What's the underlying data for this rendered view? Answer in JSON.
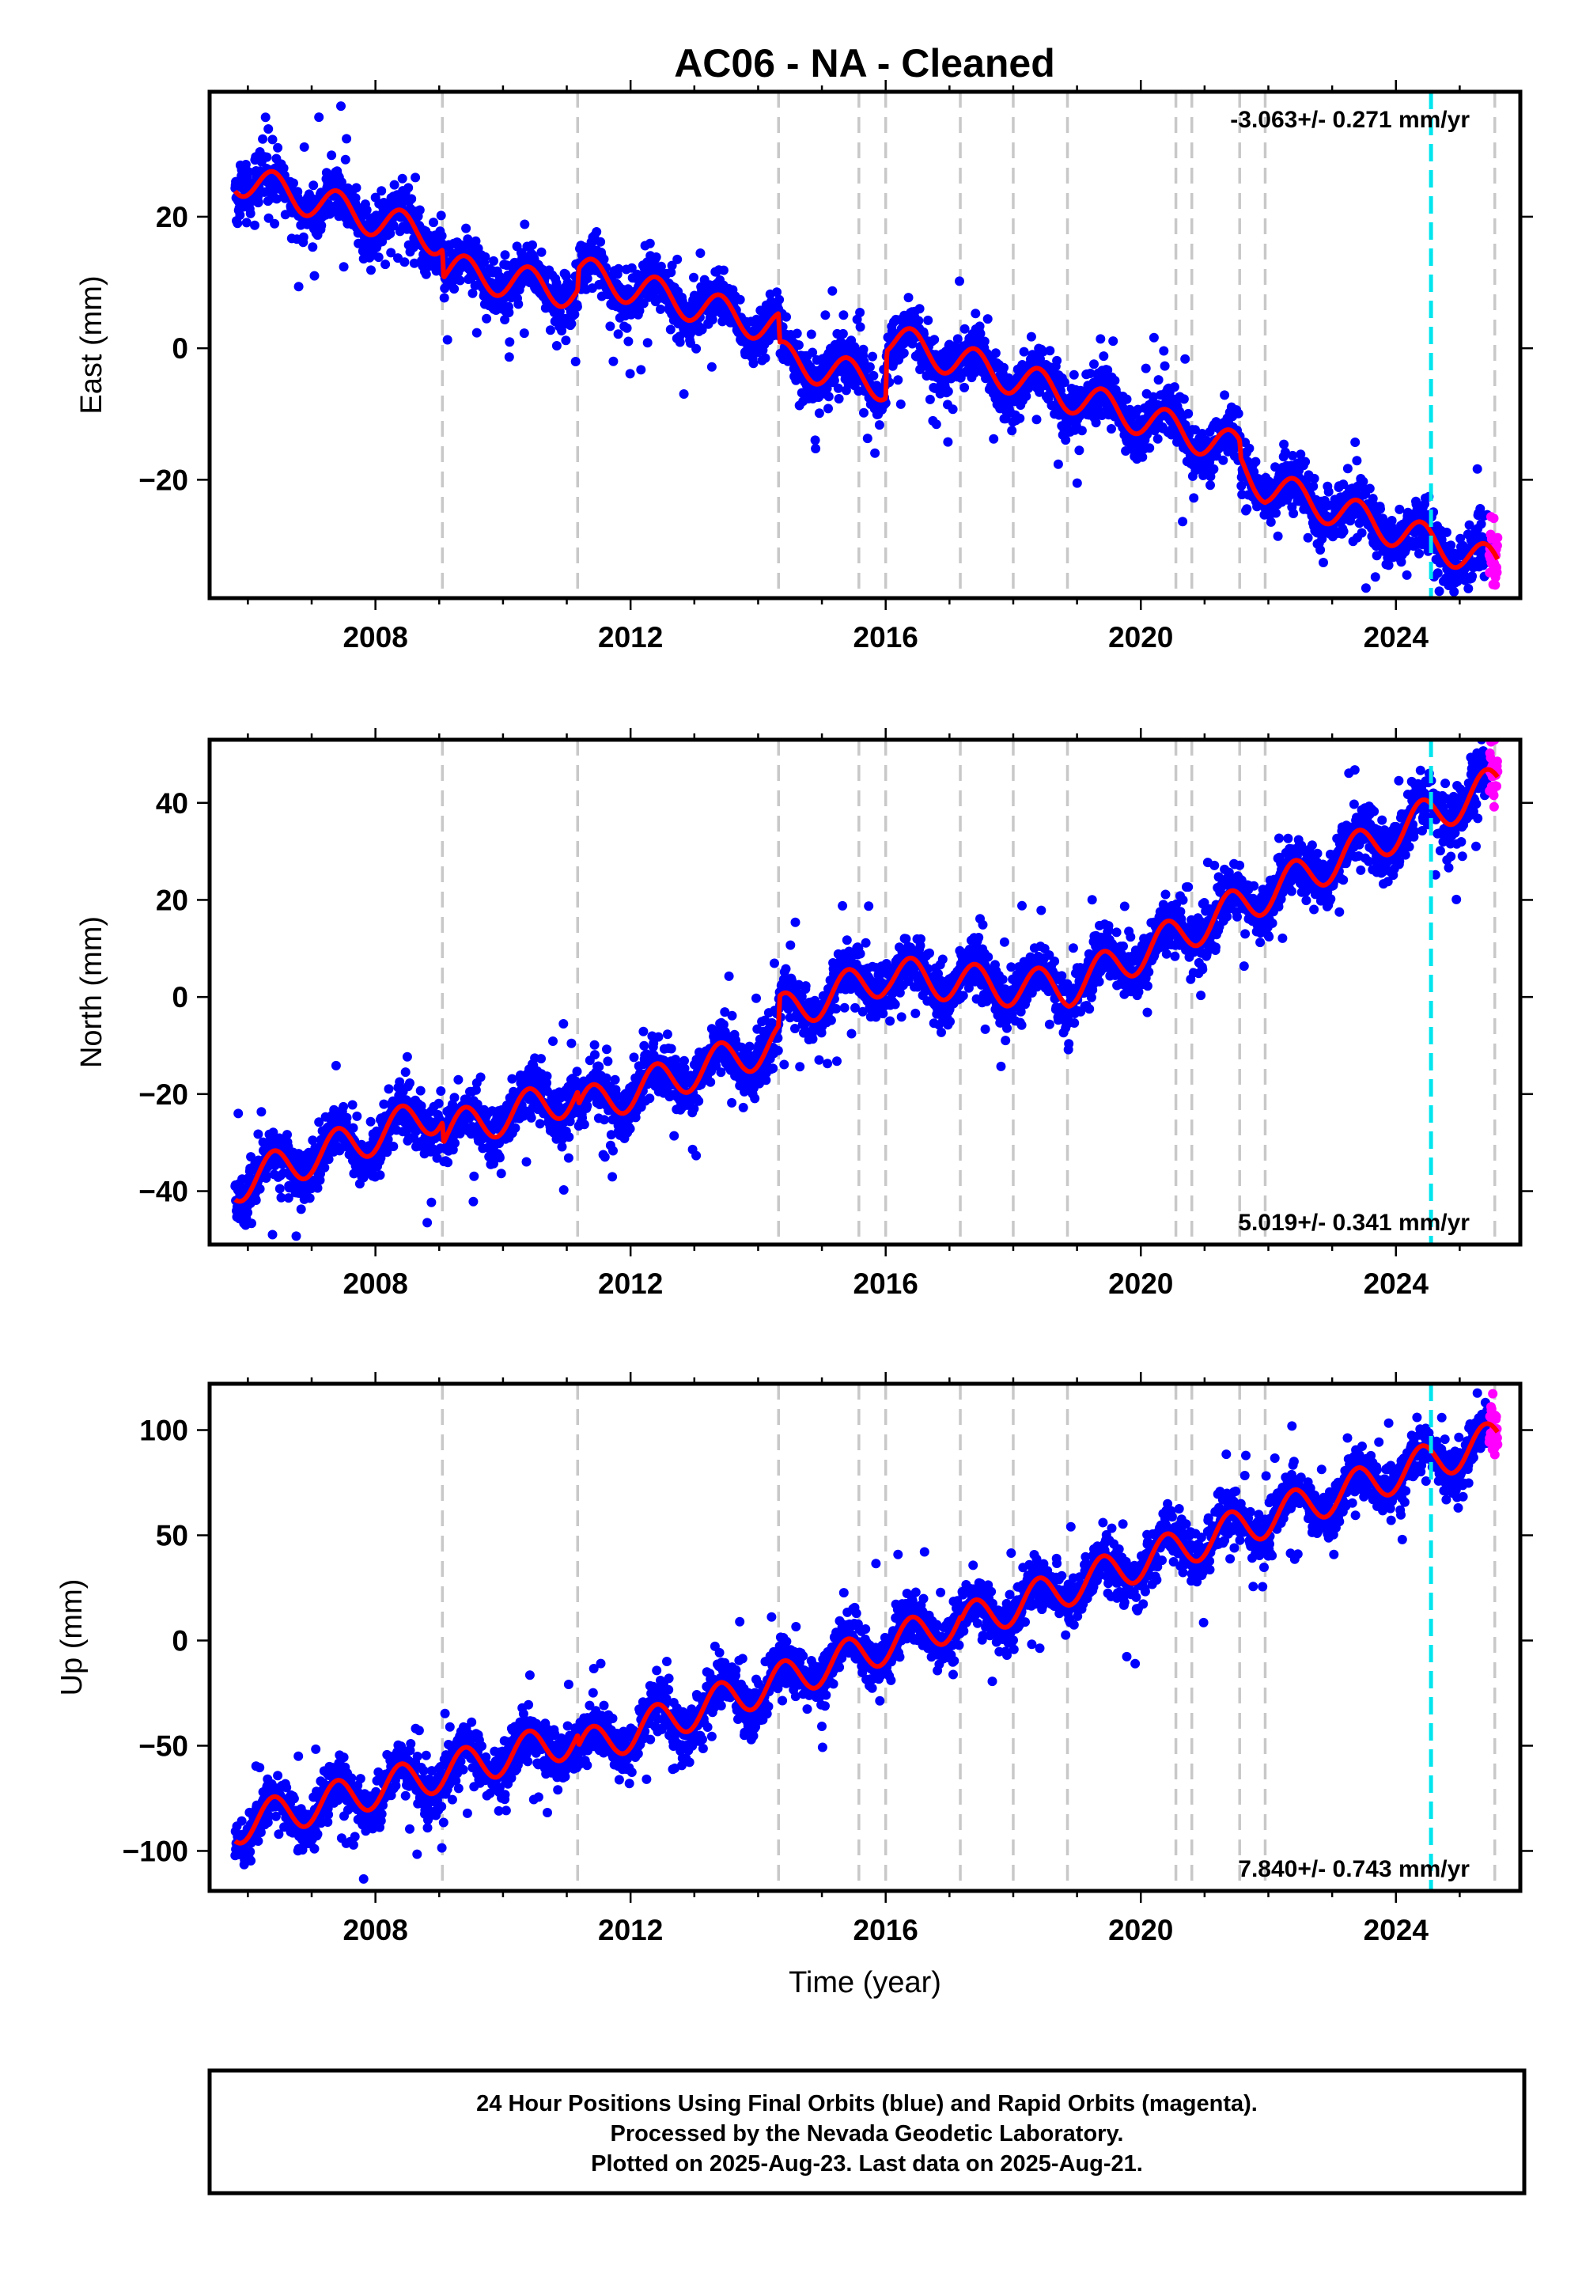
{
  "title": "AC06  - NA - Cleaned",
  "colors": {
    "final_orbits": "#0000ff",
    "rapid_orbits": "#ff00ff",
    "model_fit": "#ff0000",
    "equipment_change": "#c8c8c8",
    "highlight_event": "#00e5ee"
  },
  "footer": {
    "line1": "24 Hour Positions Using Final Orbits (blue) and Rapid Orbits (magenta).",
    "line2": "Processed by the Nevada Geodetic Laboratory.",
    "line3": "Plotted on 2025-Aug-23. Last data on 2025-Aug-21."
  },
  "chart_data": [
    {
      "type": "scatter",
      "ylabel": "East (mm)",
      "xlabel": "",
      "rate": "-3.063+/- 0.271 mm/yr",
      "rate_position": "top-right",
      "xlim": [
        2005.4,
        2025.95
      ],
      "ylim": [
        -38,
        39
      ],
      "xticks": [
        "2008",
        "2012",
        "2016",
        "2020",
        "2024"
      ],
      "yticks": [
        "20",
        "0",
        "−20"
      ],
      "ytick_values": [
        20,
        0,
        -20
      ],
      "grid": false,
      "dashed_lines": [
        2009.05,
        2011.17,
        2014.32,
        2015.58,
        2016.0,
        2017.17,
        2018.0,
        2018.85,
        2020.55,
        2020.8,
        2021.55,
        2021.95,
        2025.55
      ],
      "highlight_line": 2024.55,
      "fit_knots": [
        [
          2005.8,
          26.0
        ],
        [
          2009.05,
          16.5
        ],
        [
          2009.07,
          12.0
        ],
        [
          2011.17,
          8.5
        ],
        [
          2011.19,
          11.5
        ],
        [
          2014.32,
          3.0
        ],
        [
          2014.34,
          -1.5
        ],
        [
          2016.0,
          -5.5
        ],
        [
          2016.02,
          1.5
        ],
        [
          2018.0,
          -4.5
        ],
        [
          2018.02,
          -4.5
        ],
        [
          2021.55,
          -15.5
        ],
        [
          2021.57,
          -18.0
        ],
        [
          2021.95,
          -21.0
        ],
        [
          2021.97,
          -21.0
        ],
        [
          2025.6,
          -33.0
        ]
      ],
      "seasonal_amplitude": 2.6,
      "scatter_noise": 2.0
    },
    {
      "type": "scatter",
      "ylabel": "North (mm)",
      "xlabel": "",
      "rate": "5.019+/- 0.341 mm/yr",
      "rate_position": "bottom-right",
      "xlim": [
        2005.4,
        2025.95
      ],
      "ylim": [
        -51,
        53
      ],
      "xticks": [
        "2008",
        "2012",
        "2016",
        "2020",
        "2024"
      ],
      "yticks": [
        "40",
        "20",
        "0",
        "−20",
        "−40"
      ],
      "ytick_values": [
        40,
        20,
        0,
        -20,
        -40
      ],
      "grid": false,
      "dashed_lines": [
        2009.05,
        2011.17,
        2014.32,
        2015.58,
        2016.0,
        2017.17,
        2018.0,
        2018.85,
        2020.55,
        2020.8,
        2021.55,
        2021.95,
        2025.55
      ],
      "highlight_line": 2024.55,
      "fit_knots": [
        [
          2005.8,
          -38.5
        ],
        [
          2009.05,
          -23.5
        ],
        [
          2009.07,
          -28.0
        ],
        [
          2011.17,
          -20.0
        ],
        [
          2011.19,
          -23.0
        ],
        [
          2014.32,
          -9.5
        ],
        [
          2014.34,
          -3.5
        ],
        [
          2016.0,
          4.5
        ],
        [
          2016.02,
          4.5
        ],
        [
          2018.0,
          2.0
        ],
        [
          2018.02,
          2.0
        ],
        [
          2018.85,
          2.0
        ],
        [
          2018.87,
          2.0
        ],
        [
          2025.6,
          44.0
        ]
      ],
      "seasonal_amplitude": 4.0,
      "scatter_noise": 2.8
    },
    {
      "type": "scatter",
      "ylabel": "Up (mm)",
      "xlabel": "Time (year)",
      "rate": "7.840+/- 0.743 mm/yr",
      "rate_position": "bottom-right",
      "xlim": [
        2005.4,
        2025.95
      ],
      "ylim": [
        -119,
        122
      ],
      "xticks": [
        "2008",
        "2012",
        "2016",
        "2020",
        "2024"
      ],
      "yticks": [
        "100",
        "50",
        "0",
        "−50",
        "−100"
      ],
      "ytick_values": [
        100,
        50,
        0,
        -50,
        -100
      ],
      "grid": false,
      "dashed_lines": [
        2009.05,
        2011.17,
        2014.32,
        2015.58,
        2016.0,
        2017.17,
        2018.0,
        2018.85,
        2020.55,
        2020.8,
        2021.55,
        2021.95,
        2025.55
      ],
      "highlight_line": 2024.55,
      "fit_knots": [
        [
          2005.8,
          -88.0
        ],
        [
          2011.17,
          -46.0
        ],
        [
          2011.19,
          -52.0
        ],
        [
          2017.17,
          10.0
        ],
        [
          2017.19,
          8.0
        ],
        [
          2025.6,
          96.0
        ]
      ],
      "seasonal_amplitude": 9.0,
      "scatter_noise": 6.0
    }
  ]
}
